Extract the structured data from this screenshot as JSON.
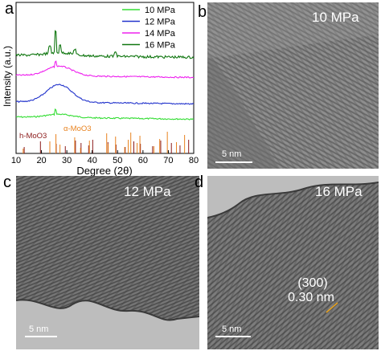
{
  "panels": {
    "a": {
      "letter": "a"
    },
    "b": {
      "letter": "b",
      "pressure": "10 MPa",
      "scale": "5 nm"
    },
    "c": {
      "letter": "c",
      "pressure": "12 MPa",
      "scale": "5 nm"
    },
    "d": {
      "letter": "d",
      "pressure": "16 MPa",
      "scale": "5 nm",
      "plane": "(300)",
      "spacing": "0.30 nm"
    }
  },
  "chart_data": {
    "type": "line",
    "xlabel": "Degree (2θ)",
    "ylabel": "Intensity (a.u.)",
    "xlim": [
      10,
      80
    ],
    "xticks": [
      10,
      20,
      30,
      40,
      50,
      60,
      70,
      80
    ],
    "series": [
      {
        "name": "10 MPa",
        "color": "#33dd33",
        "offset": 0.0
      },
      {
        "name": "12 MPa",
        "color": "#2233cc",
        "offset": 1.0
      },
      {
        "name": "14 MPa",
        "color": "#ee22ee",
        "offset": 2.0
      },
      {
        "name": "16 MPa",
        "color": "#117711",
        "offset": 3.0
      }
    ],
    "references": [
      {
        "label": "h-MoO3",
        "color": "#8b1a1a",
        "positions": [
          13.2,
          19.6,
          25.8,
          29.4,
          33.4,
          35.6,
          38.6,
          40.2,
          46.2,
          49.4,
          53.0,
          56.4,
          59.0,
          63.8,
          67.0,
          71.2,
          74.6,
          78.0
        ]
      },
      {
        "label": "α-MoO3",
        "color": "#e8821e",
        "positions": [
          12.8,
          23.3,
          25.7,
          27.3,
          33.1,
          35.4,
          38.9,
          45.7,
          46.3,
          49.2,
          52.8,
          54.2,
          55.2,
          57.7,
          58.8,
          64.3,
          66.6,
          69.6,
          73.2,
          76.4
        ]
      }
    ]
  }
}
